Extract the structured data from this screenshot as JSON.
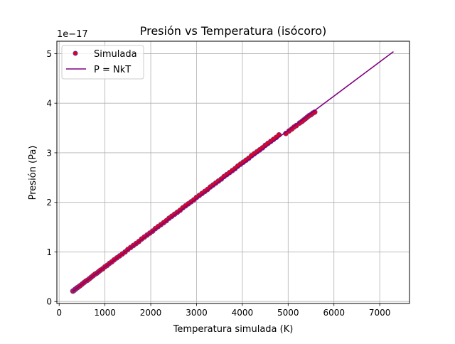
{
  "chart_data": {
    "type": "scatter",
    "title": "Presión vs Temperatura (isócoro)",
    "xlabel": "Temperatura simulada (K)",
    "ylabel": "Presión (Pa)",
    "y_scale_label": "1e−17",
    "xlim": [
      -50,
      7650
    ],
    "ylim": [
      -0.04,
      5.25
    ],
    "x_ticks": [
      0,
      1000,
      2000,
      3000,
      4000,
      5000,
      6000,
      7000
    ],
    "x_tick_labels": [
      "0",
      "1000",
      "2000",
      "3000",
      "4000",
      "5000",
      "6000",
      "7000"
    ],
    "y_ticks": [
      0,
      1,
      2,
      3,
      4,
      5
    ],
    "y_tick_labels": [
      "0",
      "1",
      "2",
      "3",
      "4",
      "5"
    ],
    "grid": true,
    "legend_position": "top-left",
    "series": [
      {
        "name": "Simulada",
        "kind": "scatter",
        "color": "#e3001b",
        "edge_color": "#2255cc",
        "x": [
          300,
          320,
          340,
          360,
          380,
          400,
          430,
          460,
          500,
          540,
          580,
          620,
          660,
          700,
          740,
          780,
          820,
          860,
          900,
          950,
          1000,
          1050,
          1100,
          1150,
          1200,
          1260,
          1320,
          1380,
          1440,
          1500,
          1560,
          1620,
          1680,
          1740,
          1800,
          1860,
          1920,
          1980,
          2040,
          2100,
          2160,
          2220,
          2280,
          2340,
          2400,
          2460,
          2520,
          2580,
          2640,
          2700,
          2760,
          2820,
          2880,
          2940,
          3000,
          3060,
          3120,
          3180,
          3240,
          3300,
          3360,
          3420,
          3480,
          3540,
          3600,
          3660,
          3720,
          3780,
          3840,
          3900,
          3960,
          4020,
          4080,
          4140,
          4200,
          4260,
          4320,
          4380,
          4440,
          4500,
          4560,
          4620,
          4680,
          4740,
          4800,
          4950,
          5020,
          5080,
          5130,
          5180,
          5250,
          5300,
          5340,
          5380,
          5420,
          5460,
          5500,
          5540,
          5580
        ],
        "y": [
          0.21,
          0.22,
          0.24,
          0.25,
          0.27,
          0.28,
          0.3,
          0.32,
          0.35,
          0.38,
          0.41,
          0.43,
          0.46,
          0.49,
          0.52,
          0.55,
          0.57,
          0.6,
          0.63,
          0.66,
          0.7,
          0.73,
          0.77,
          0.8,
          0.84,
          0.88,
          0.92,
          0.96,
          1.0,
          1.05,
          1.09,
          1.13,
          1.17,
          1.21,
          1.26,
          1.3,
          1.34,
          1.38,
          1.42,
          1.47,
          1.51,
          1.55,
          1.59,
          1.63,
          1.68,
          1.72,
          1.76,
          1.8,
          1.84,
          1.89,
          1.93,
          1.97,
          2.01,
          2.05,
          2.1,
          2.14,
          2.18,
          2.22,
          2.26,
          2.31,
          2.35,
          2.39,
          2.43,
          2.47,
          2.52,
          2.56,
          2.6,
          2.64,
          2.68,
          2.73,
          2.77,
          2.81,
          2.85,
          2.89,
          2.94,
          2.98,
          3.02,
          3.06,
          3.1,
          3.15,
          3.19,
          3.23,
          3.27,
          3.31,
          3.36,
          3.39,
          3.44,
          3.48,
          3.52,
          3.55,
          3.6,
          3.63,
          3.66,
          3.69,
          3.72,
          3.75,
          3.77,
          3.8,
          3.82
        ]
      },
      {
        "name": "P = NkT",
        "kind": "line",
        "color": "#800080",
        "x": [
          300,
          7300
        ],
        "y": [
          0.21,
          5.04
        ]
      }
    ]
  }
}
